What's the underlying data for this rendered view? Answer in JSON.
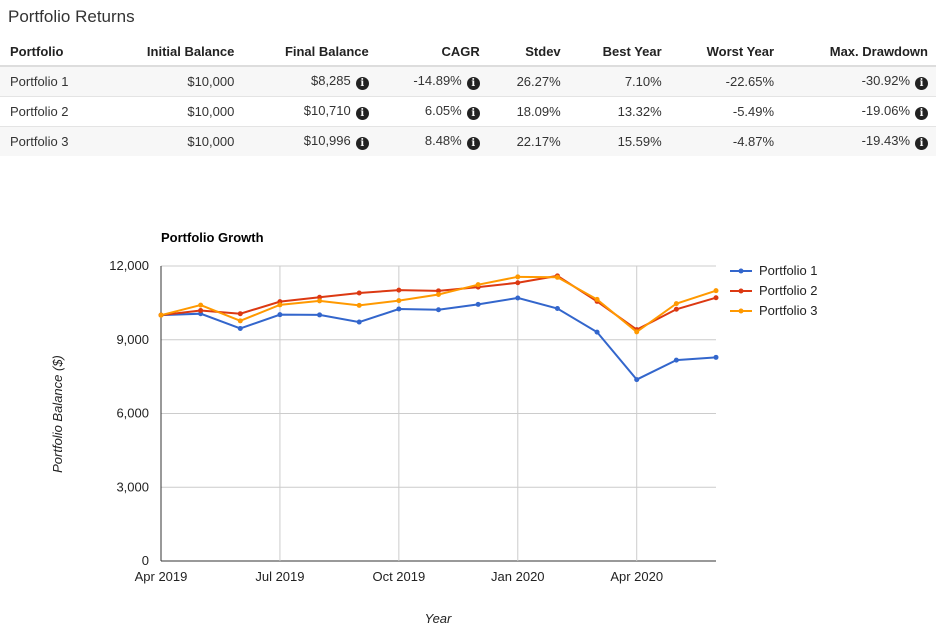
{
  "returns": {
    "title": "Portfolio Returns",
    "headers": [
      "Portfolio",
      "Initial Balance",
      "Final Balance",
      "CAGR",
      "Stdev",
      "Best Year",
      "Worst Year",
      "Max. Drawdown"
    ],
    "rows": [
      [
        "Portfolio 1",
        "$10,000",
        "$8,285",
        "-14.89%",
        "26.27%",
        "7.10%",
        "-22.65%",
        "-30.92%"
      ],
      [
        "Portfolio 2",
        "$10,000",
        "$10,710",
        "6.05%",
        "18.09%",
        "13.32%",
        "-5.49%",
        "-19.06%"
      ],
      [
        "Portfolio 3",
        "$10,000",
        "$10,996",
        "8.48%",
        "22.17%",
        "15.59%",
        "-4.87%",
        "-19.43%"
      ]
    ],
    "info_icon": "info-circle-icon",
    "info_glyph": "i"
  },
  "chart_data": {
    "type": "line",
    "title": "Portfolio Growth",
    "xlabel": "Year",
    "ylabel": "Portfolio Balance ($)",
    "ylim": [
      0,
      12000
    ],
    "yticks": [
      0,
      3000,
      6000,
      9000,
      12000
    ],
    "ytick_labels": [
      "0",
      "3,000",
      "6,000",
      "9,000",
      "12,000"
    ],
    "xtick_labels": [
      "Apr 2019",
      "Jul 2019",
      "Oct 2019",
      "Jan 2020",
      "Apr 2020"
    ],
    "xtick_index": [
      0,
      3,
      6,
      9,
      12
    ],
    "x": [
      "Apr 2019",
      "May 2019",
      "Jun 2019",
      "Jul 2019",
      "Aug 2019",
      "Sep 2019",
      "Oct 2019",
      "Nov 2019",
      "Dec 2019",
      "Jan 2020",
      "Feb 2020",
      "Mar 2020",
      "Apr 2020",
      "May 2020",
      "Jun 2020"
    ],
    "grid": true,
    "legend_position": "right",
    "series": [
      {
        "name": "Portfolio 1",
        "color": "#3366cc",
        "values": [
          10000,
          10060,
          9460,
          10020,
          10010,
          9720,
          10250,
          10220,
          10440,
          10700,
          10270,
          9310,
          7380,
          8170,
          8285
        ]
      },
      {
        "name": "Portfolio 2",
        "color": "#dc3912",
        "values": [
          10000,
          10190,
          10060,
          10550,
          10730,
          10900,
          11020,
          10990,
          11140,
          11320,
          11600,
          10560,
          9410,
          10240,
          10710
        ]
      },
      {
        "name": "Portfolio 3",
        "color": "#ff9900",
        "values": [
          10000,
          10410,
          9770,
          10420,
          10580,
          10400,
          10590,
          10840,
          11240,
          11560,
          11540,
          10640,
          9320,
          10470,
          10996
        ]
      }
    ]
  }
}
